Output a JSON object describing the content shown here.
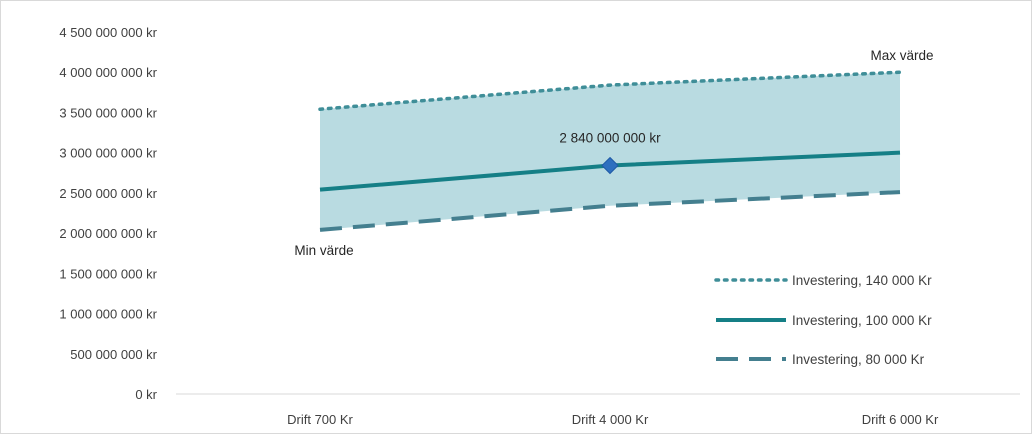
{
  "chart_data": {
    "type": "line",
    "categories": [
      "Drift 700 Kr",
      "Drift 4 000 Kr",
      "Drift 6 000 Kr"
    ],
    "y_ticks": [
      "0 kr",
      "500 000 000 kr",
      "1 000 000 000 kr",
      "1 500 000 000 kr",
      "2 000 000 000 kr",
      "2 500 000 000 kr",
      "3 000 000 000 kr",
      "3 500 000 000 kr",
      "4 000 000 000 kr",
      "4 500 000 000 kr"
    ],
    "ylim": [
      0,
      4500000000
    ],
    "grid": false,
    "legend_position": "bottom-right",
    "series": [
      {
        "name": "Investering, 140 000 Kr",
        "values": [
          3540000000,
          3840000000,
          4000000000
        ],
        "style": "dotted",
        "color": "#3f8e98"
      },
      {
        "name": "Investering, 100 000 Kr",
        "values": [
          2540000000,
          2840000000,
          3000000000
        ],
        "style": "solid",
        "color": "#157f86"
      },
      {
        "name": "Investering, 80 000 Kr",
        "values": [
          2040000000,
          2340000000,
          2510000000
        ],
        "style": "dashed",
        "color": "#447f8f"
      }
    ],
    "band_fill": "#b9dbe1",
    "highlight_point": {
      "series_index": 1,
      "category_index": 1,
      "color": "#2e6fbf",
      "label": "2 840 000 000 kr"
    },
    "annotations": {
      "max": "Max värde",
      "min": "Min värde"
    }
  }
}
